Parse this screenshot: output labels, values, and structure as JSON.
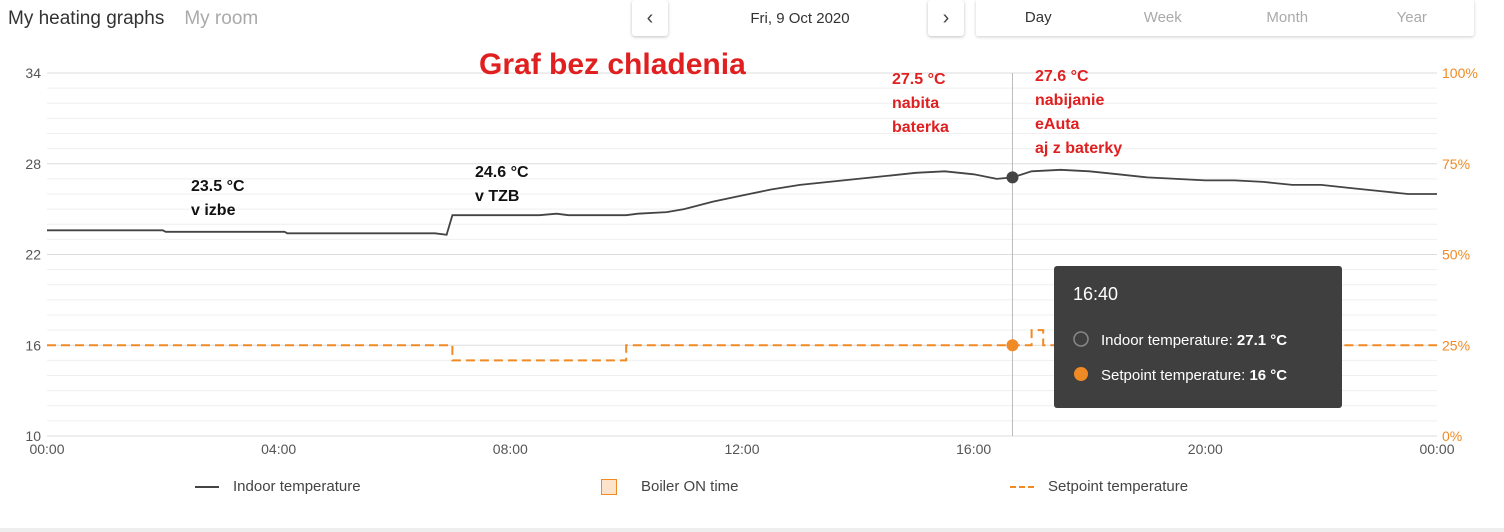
{
  "header": {
    "tab_active": "My heating graphs",
    "tab_inactive": "My room",
    "prev_icon": "chevron-left-icon",
    "next_icon": "chevron-right-icon",
    "date": "Fri, 9 Oct 2020",
    "periods": [
      "Day",
      "Week",
      "Month",
      "Year"
    ],
    "active_period": "Day"
  },
  "annotations": {
    "title": "Graf bez chladenia",
    "a1_line1": "23.5 °C",
    "a1_line2": "v izbe",
    "a2_line1": "24.6 °C",
    "a2_line2": "v TZB",
    "a3_line1": "27.5 °C",
    "a3_line2": "nabita",
    "a3_line3": "baterka",
    "a4_line1": "27.6 °C",
    "a4_line2": "nabijanie",
    "a4_line3": "eAuta",
    "a4_line4": "aj z baterky"
  },
  "tooltip": {
    "time": "16:40",
    "indoor_label": "Indoor temperature:",
    "indoor_value": "27.1 °C",
    "setpoint_label": "Setpoint temperature:",
    "setpoint_value": "16 °C"
  },
  "legend": {
    "indoor": "Indoor temperature",
    "boiler": "Boiler ON time",
    "setpoint": "Setpoint temperature"
  },
  "colors": {
    "indoor": "#444444",
    "setpoint": "#f08a24",
    "annotation_red": "#e02020",
    "tooltip_bg": "#3f3f3f",
    "boiler_fill": "#fde3cc"
  },
  "chart_data": {
    "type": "line",
    "xlim": [
      0,
      24
    ],
    "x_ticks": [
      "00:00",
      "04:00",
      "08:00",
      "12:00",
      "16:00",
      "20:00",
      "00:00"
    ],
    "ylim": [
      10,
      34
    ],
    "y_ticks": [
      "10",
      "16",
      "22",
      "28",
      "34"
    ],
    "y2_ticks": [
      "0%",
      "25%",
      "50%",
      "75%",
      "100%"
    ],
    "grid": true,
    "legend_position": "bottom",
    "hover_time": 16.67,
    "series": [
      {
        "name": "Indoor temperature",
        "x": [
          0,
          2,
          2.05,
          4.1,
          4.15,
          6.7,
          6.9,
          7.0,
          7.2,
          8.5,
          8.8,
          9.0,
          10.0,
          10.2,
          10.7,
          11.0,
          11.5,
          12.0,
          12.5,
          13.0,
          13.5,
          14.0,
          14.5,
          15.0,
          15.5,
          16.0,
          16.4,
          16.67,
          17.0,
          17.5,
          18.0,
          18.5,
          19.0,
          19.5,
          20.0,
          20.5,
          21.0,
          21.5,
          22.0,
          22.5,
          23.0,
          23.5,
          24.0
        ],
        "y": [
          23.6,
          23.6,
          23.5,
          23.5,
          23.4,
          23.4,
          23.3,
          24.6,
          24.6,
          24.6,
          24.7,
          24.6,
          24.6,
          24.7,
          24.8,
          25.0,
          25.5,
          25.9,
          26.3,
          26.6,
          26.8,
          27.0,
          27.2,
          27.4,
          27.5,
          27.3,
          27.0,
          27.1,
          27.5,
          27.6,
          27.5,
          27.3,
          27.1,
          27.0,
          26.9,
          26.9,
          26.8,
          26.6,
          26.6,
          26.4,
          26.2,
          26.0,
          26.0
        ]
      },
      {
        "name": "Setpoint temperature",
        "x": [
          0,
          7.0,
          7.0,
          10.0,
          10.0,
          16.67,
          16.67,
          17.0,
          17.0,
          17.2,
          17.2,
          24.0
        ],
        "y": [
          16,
          16,
          15,
          15,
          16,
          16,
          16,
          16,
          17,
          17,
          16,
          16
        ]
      }
    ]
  }
}
